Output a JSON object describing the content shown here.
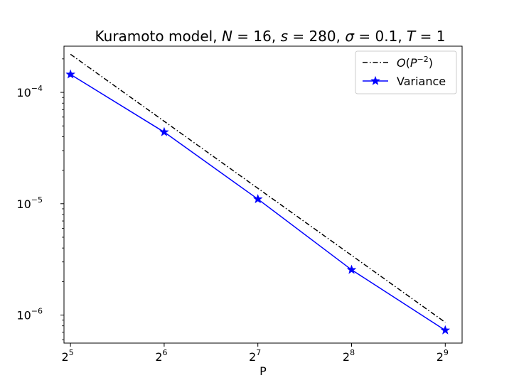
{
  "chart_data": {
    "type": "line",
    "title": "Kuramoto model, N = 16, s = 280, σ = 0.1, T = 1",
    "title_parts": {
      "prefix": "Kuramoto model, ",
      "N_var": "N",
      "N_val": " = 16,  ",
      "s_var": "s",
      "s_val": " = 280, ",
      "sigma_var": "σ",
      "sigma_val": " = 0.1, ",
      "T_var": "T",
      "T_val": " = 1"
    },
    "xlabel": "P",
    "ylabel": "",
    "x_scale": "log2",
    "y_scale": "log10",
    "xlim": [
      30.5,
      580
    ],
    "ylim": [
      5.6e-07,
      0.00026
    ],
    "x_ticks": [
      {
        "value": 32,
        "base": "2",
        "exp": "5"
      },
      {
        "value": 64,
        "base": "2",
        "exp": "6"
      },
      {
        "value": 128,
        "base": "2",
        "exp": "7"
      },
      {
        "value": 256,
        "base": "2",
        "exp": "8"
      },
      {
        "value": 512,
        "base": "2",
        "exp": "9"
      }
    ],
    "y_ticks": [
      {
        "value": 0.0001,
        "base": "10",
        "exp": "−4"
      },
      {
        "value": 1e-05,
        "base": "10",
        "exp": "−5"
      },
      {
        "value": 1e-06,
        "base": "10",
        "exp": "−6"
      }
    ],
    "grid": false,
    "legend_position": "top-right",
    "series": [
      {
        "name": "O(P^-2)",
        "legend_parts": {
          "O": "O",
          "open": "(",
          "P": "P",
          "exp": "−2",
          "close": ")"
        },
        "style": "dashdot",
        "color": "#000000",
        "marker": "none",
        "x": [
          32,
          512
        ],
        "y": [
          0.00022,
          8.6e-07
        ]
      },
      {
        "name": "Variance",
        "style": "solid",
        "color": "#0000ff",
        "marker": "star",
        "x": [
          32,
          64,
          128,
          256,
          512
        ],
        "y": [
          0.000145,
          4.4e-05,
          1.1e-05,
          2.55e-06,
          7.3e-07
        ]
      }
    ]
  }
}
